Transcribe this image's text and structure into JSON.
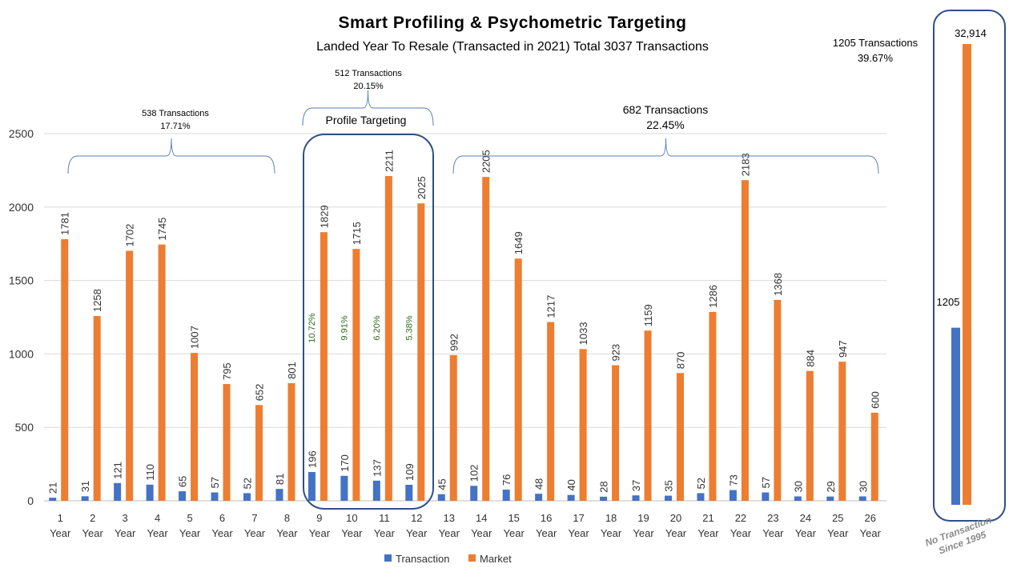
{
  "chart_data": {
    "type": "bar",
    "title": "Smart Profiling & Psychometric Targeting",
    "subtitle": "Landed Year To Resale (Transacted in 2021) Total 3037 Transactions",
    "categories": [
      "1",
      "2",
      "3",
      "4",
      "5",
      "6",
      "7",
      "8",
      "9",
      "10",
      "11",
      "12",
      "13",
      "14",
      "15",
      "16",
      "17",
      "18",
      "19",
      "20",
      "21",
      "22",
      "23",
      "24",
      "25",
      "26"
    ],
    "category_suffix": "Year",
    "series": [
      {
        "name": "Transaction",
        "color": "#4472c4",
        "values": [
          21,
          31,
          121,
          110,
          65,
          57,
          52,
          81,
          196,
          170,
          137,
          109,
          45,
          102,
          76,
          48,
          40,
          28,
          37,
          35,
          52,
          73,
          57,
          30,
          29,
          30
        ]
      },
      {
        "name": "Market",
        "color": "#ed7d31",
        "values": [
          1781,
          1258,
          1702,
          1745,
          1007,
          795,
          652,
          801,
          1829,
          1715,
          2211,
          2025,
          992,
          2205,
          1649,
          1217,
          1033,
          923,
          1159,
          870,
          1286,
          2183,
          1368,
          884,
          947,
          600
        ]
      }
    ],
    "ylim": [
      0,
      2500
    ],
    "yticks": [
      0,
      500,
      1000,
      1500,
      2000,
      2500
    ],
    "grid": true,
    "legend_position": "bottom",
    "percent_labels": [
      {
        "category": "9",
        "text": "10.72%"
      },
      {
        "category": "10",
        "text": "9.91%"
      },
      {
        "category": "11",
        "text": "6.20%"
      },
      {
        "category": "12",
        "text": "5.38%"
      }
    ],
    "groups": [
      {
        "from": "1",
        "to": "8",
        "line1": "538 Transactions",
        "line2": "17.71%"
      },
      {
        "from": "9",
        "to": "12",
        "line1": "512 Transactions",
        "line2": "20.15%",
        "label": "Profile Targeting"
      },
      {
        "from": "13",
        "to": "26",
        "line1": "682 Transactions",
        "line2": "22.45%"
      }
    ],
    "side_panel": {
      "transaction_value": "1205",
      "market_value": "32,914",
      "transaction_fraction": 0.0366,
      "caption1": "1205 Transactions",
      "caption2": "39.67%",
      "stamp_line1": "No Transaction",
      "stamp_line2": "Since 1995"
    }
  }
}
